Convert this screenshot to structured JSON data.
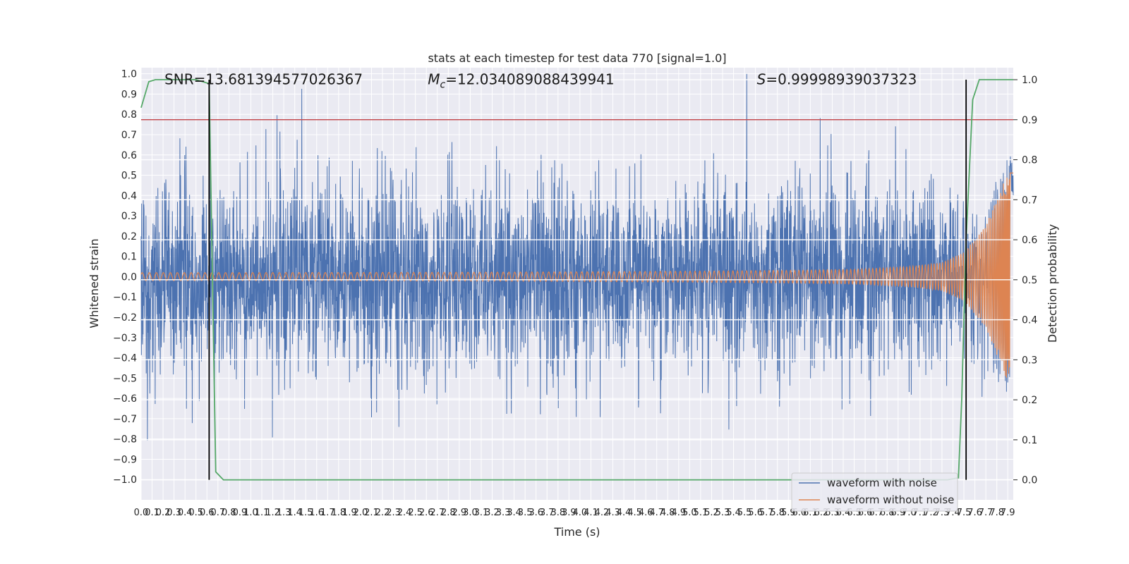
{
  "chart_data": {
    "type": "line",
    "title": "stats at each timestep for test data 770 [signal=1.0]",
    "xlabel": "Time (s)",
    "ylabel": "Whitened strain",
    "ylabel_right": "Detection probability",
    "xlim": [
      0.0,
      7.95
    ],
    "ylim": [
      -1.1,
      1.03
    ],
    "ylim_right": [
      -0.05,
      1.03
    ],
    "x_ticks": [
      "0.0",
      "0.1",
      "0.2",
      "0.3",
      "0.4",
      "0.5",
      "0.6",
      "0.7",
      "0.8",
      "0.9",
      "1.0",
      "1.1",
      "1.2",
      "1.3",
      "1.4",
      "1.5",
      "1.6",
      "1.7",
      "1.8",
      "1.9",
      "2.0",
      "2.1",
      "2.2",
      "2.3",
      "2.4",
      "2.5",
      "2.6",
      "2.7",
      "2.8",
      "2.9",
      "3.0",
      "3.1",
      "3.2",
      "3.3",
      "3.4",
      "3.5",
      "3.6",
      "3.7",
      "3.8",
      "3.9",
      "4.0",
      "4.1",
      "4.2",
      "4.3",
      "4.4",
      "4.5",
      "4.6",
      "4.7",
      "4.8",
      "4.9",
      "5.0",
      "5.1",
      "5.2",
      "5.3",
      "5.4",
      "5.5",
      "5.6",
      "5.7",
      "5.8",
      "5.9",
      "6.0",
      "6.1",
      "6.2",
      "6.3",
      "6.4",
      "6.5",
      "6.6",
      "6.7",
      "6.8",
      "6.9",
      "7.0",
      "7.1",
      "7.2",
      "7.3",
      "7.4",
      "7.5",
      "7.6",
      "7.7",
      "7.8",
      "7.9"
    ],
    "y_ticks": [
      "1.0",
      "0.9",
      "0.8",
      "0.7",
      "0.6",
      "0.5",
      "0.4",
      "0.3",
      "0.2",
      "0.1",
      "0.0",
      "−0.1",
      "−0.2",
      "−0.3",
      "−0.4",
      "−0.5",
      "−0.6",
      "−0.7",
      "−0.8",
      "−0.9",
      "−1.0"
    ],
    "y_ticks_right": [
      "1.0",
      "0.9",
      "0.8",
      "0.7",
      "0.6",
      "0.5",
      "0.4",
      "0.3",
      "0.2",
      "0.1",
      "0.0"
    ],
    "annotations": [
      {
        "text": "SNR=13.681394577026367",
        "x": 0.2,
        "y": 0.97
      },
      {
        "text": "Mc=12.034089088439941",
        "x": 2.6,
        "y": 0.97
      },
      {
        "text": "S=0.99998939037323",
        "x": 5.6,
        "y": 0.97
      }
    ],
    "threshold_right": 0.9,
    "vertical_lines_x": [
      0.62,
      7.52
    ],
    "noise_envelope": {
      "x": [
        0.0,
        1.0,
        2.0,
        3.0,
        4.0,
        5.0,
        6.0,
        6.5,
        7.0,
        7.3,
        7.5,
        7.7,
        7.9
      ],
      "amplitude": [
        0.42,
        0.42,
        0.42,
        0.42,
        0.42,
        0.42,
        0.43,
        0.43,
        0.42,
        0.38,
        0.33,
        0.24,
        0.12
      ]
    },
    "clean_envelope": {
      "x": [
        0.0,
        1.0,
        2.0,
        3.0,
        4.0,
        5.0,
        6.0,
        6.5,
        7.0,
        7.3,
        7.5,
        7.7,
        7.9
      ],
      "amplitude": [
        0.02,
        0.02,
        0.021,
        0.022,
        0.024,
        0.027,
        0.032,
        0.036,
        0.05,
        0.07,
        0.12,
        0.25,
        0.52
      ]
    },
    "series": [
      {
        "name": "waveform with noise",
        "color": "#4c72b0"
      },
      {
        "name": "waveform without noise",
        "color": "#dd8452"
      },
      {
        "name": "",
        "color": "#55a868",
        "axis": "right",
        "x": [
          0.0,
          0.07,
          0.13,
          0.5,
          0.62,
          0.68,
          0.75,
          0.9,
          3.0,
          5.0,
          7.0,
          7.35,
          7.45,
          7.48,
          7.52,
          7.58,
          7.64,
          7.7,
          7.95
        ],
        "y": [
          0.93,
          0.995,
          1.0,
          1.0,
          0.99,
          0.02,
          0.0,
          0.0,
          0.0,
          0.0,
          0.0,
          0.0,
          0.005,
          0.2,
          0.6,
          0.95,
          1.0,
          1.0,
          1.0
        ]
      },
      {
        "name": "",
        "color": "#c44e52",
        "axis": "right",
        "x": [
          0.0,
          7.95
        ],
        "y": [
          0.9,
          0.9
        ]
      }
    ],
    "legend": {
      "position": "bottom-right",
      "entries": [
        "waveform with noise",
        "waveform without noise"
      ]
    },
    "grid": true
  }
}
